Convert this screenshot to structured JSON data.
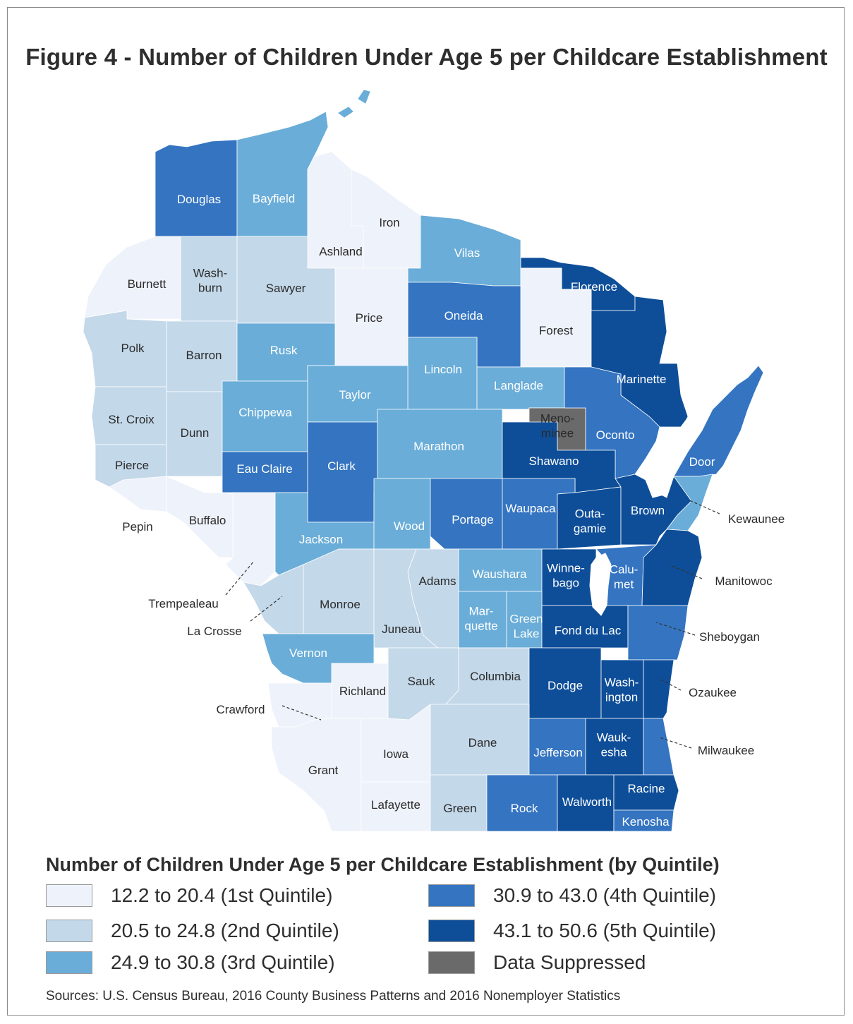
{
  "title": "Figure 4 - Number of Children Under Age 5 per Childcare Establishment",
  "colors": {
    "q1": "#eef2fa",
    "q2": "#c3d8e9",
    "q3": "#6aadd8",
    "q4": "#3474c1",
    "q5": "#0e4e99",
    "suppressed": "#6a6a6a",
    "water": "#ffffff"
  },
  "counties": [
    {
      "name": "Douglas",
      "quintile": "q4"
    },
    {
      "name": "Bayfield",
      "quintile": "q3"
    },
    {
      "name": "Ashland",
      "quintile": "q1"
    },
    {
      "name": "Iron",
      "quintile": "q1"
    },
    {
      "name": "Vilas",
      "quintile": "q3"
    },
    {
      "name": "Florence",
      "quintile": "q5"
    },
    {
      "name": "Forest",
      "quintile": "q1"
    },
    {
      "name": "Oneida",
      "quintile": "q4"
    },
    {
      "name": "Price",
      "quintile": "q1"
    },
    {
      "name": "Burnett",
      "quintile": "q1"
    },
    {
      "name": "Wash-|burn",
      "quintile": "q2"
    },
    {
      "name": "Sawyer",
      "quintile": "q2"
    },
    {
      "name": "Polk",
      "quintile": "q2"
    },
    {
      "name": "Barron",
      "quintile": "q2"
    },
    {
      "name": "Rusk",
      "quintile": "q3"
    },
    {
      "name": "Lincoln",
      "quintile": "q3"
    },
    {
      "name": "Langlade",
      "quintile": "q3"
    },
    {
      "name": "Marinette",
      "quintile": "q5"
    },
    {
      "name": "Taylor",
      "quintile": "q3"
    },
    {
      "name": "St. Croix",
      "quintile": "q2"
    },
    {
      "name": "Dunn",
      "quintile": "q2"
    },
    {
      "name": "Chippewa",
      "quintile": "q3"
    },
    {
      "name": "Meno-|minee",
      "quintile": "suppressed"
    },
    {
      "name": "Oconto",
      "quintile": "q4"
    },
    {
      "name": "Pierce",
      "quintile": "q2"
    },
    {
      "name": "Eau Claire",
      "quintile": "q4"
    },
    {
      "name": "Clark",
      "quintile": "q4"
    },
    {
      "name": "Marathon",
      "quintile": "q3"
    },
    {
      "name": "Shawano",
      "quintile": "q5"
    },
    {
      "name": "Door",
      "quintile": "q4"
    },
    {
      "name": "Pepin",
      "quintile": "q1"
    },
    {
      "name": "Buffalo",
      "quintile": "q1"
    },
    {
      "name": "Trempealeau",
      "quintile": "q1"
    },
    {
      "name": "Jackson",
      "quintile": "q3"
    },
    {
      "name": "Wood",
      "quintile": "q3"
    },
    {
      "name": "Portage",
      "quintile": "q4"
    },
    {
      "name": "Waupaca",
      "quintile": "q4"
    },
    {
      "name": "Outa-|gamie",
      "quintile": "q5"
    },
    {
      "name": "Brown",
      "quintile": "q5"
    },
    {
      "name": "Kewaunee",
      "quintile": "q3"
    },
    {
      "name": "Adams",
      "quintile": "q2"
    },
    {
      "name": "Waushara",
      "quintile": "q3"
    },
    {
      "name": "Winne-|bago",
      "quintile": "q5"
    },
    {
      "name": "Calu-|met",
      "quintile": "q4"
    },
    {
      "name": "Manitowoc",
      "quintile": "q5"
    },
    {
      "name": "La Crosse",
      "quintile": "q2"
    },
    {
      "name": "Monroe",
      "quintile": "q2"
    },
    {
      "name": "Juneau",
      "quintile": "q2"
    },
    {
      "name": "Mar-|quette",
      "quintile": "q3"
    },
    {
      "name": "Green|Lake",
      "quintile": "q3"
    },
    {
      "name": "Fond du Lac",
      "quintile": "q5"
    },
    {
      "name": "Sheboygan",
      "quintile": "q4"
    },
    {
      "name": "Vernon",
      "quintile": "q3"
    },
    {
      "name": "Richland",
      "quintile": "q1"
    },
    {
      "name": "Sauk",
      "quintile": "q2"
    },
    {
      "name": "Columbia",
      "quintile": "q2"
    },
    {
      "name": "Dodge",
      "quintile": "q5"
    },
    {
      "name": "Wash-|ington",
      "quintile": "q5"
    },
    {
      "name": "Ozaukee",
      "quintile": "q5"
    },
    {
      "name": "Crawford",
      "quintile": "q1"
    },
    {
      "name": "Grant",
      "quintile": "q1"
    },
    {
      "name": "Iowa",
      "quintile": "q1"
    },
    {
      "name": "Dane",
      "quintile": "q2"
    },
    {
      "name": "Jefferson",
      "quintile": "q4"
    },
    {
      "name": "Wauk-|esha",
      "quintile": "q5"
    },
    {
      "name": "Milwaukee",
      "quintile": "q4"
    },
    {
      "name": "Lafayette",
      "quintile": "q1"
    },
    {
      "name": "Green",
      "quintile": "q2"
    },
    {
      "name": "Rock",
      "quintile": "q4"
    },
    {
      "name": "Walworth",
      "quintile": "q5"
    },
    {
      "name": "Racine",
      "quintile": "q5"
    },
    {
      "name": "Kenosha",
      "quintile": "q4"
    }
  ],
  "legend": {
    "title": "Number of Children Under Age 5 per Childcare Establishment (by Quintile)",
    "items": [
      {
        "label": "12.2 to 20.4 (1st Quintile)",
        "color": "#eef2fa"
      },
      {
        "label": "20.5 to 24.8 (2nd Quintile)",
        "color": "#c3d8e9"
      },
      {
        "label": "24.9 to 30.8 (3rd Quintile)",
        "color": "#6aadd8"
      },
      {
        "label": "30.9 to 43.0 (4th Quintile)",
        "color": "#3474c1"
      },
      {
        "label": "43.1 to 50.6 (5th Quintile)",
        "color": "#0e4e99"
      },
      {
        "label": "Data Suppressed",
        "color": "#6a6a6a"
      }
    ]
  },
  "source": "Sources: U.S. Census Bureau, 2016 County Business Patterns and 2016 Nonemployer Statistics"
}
